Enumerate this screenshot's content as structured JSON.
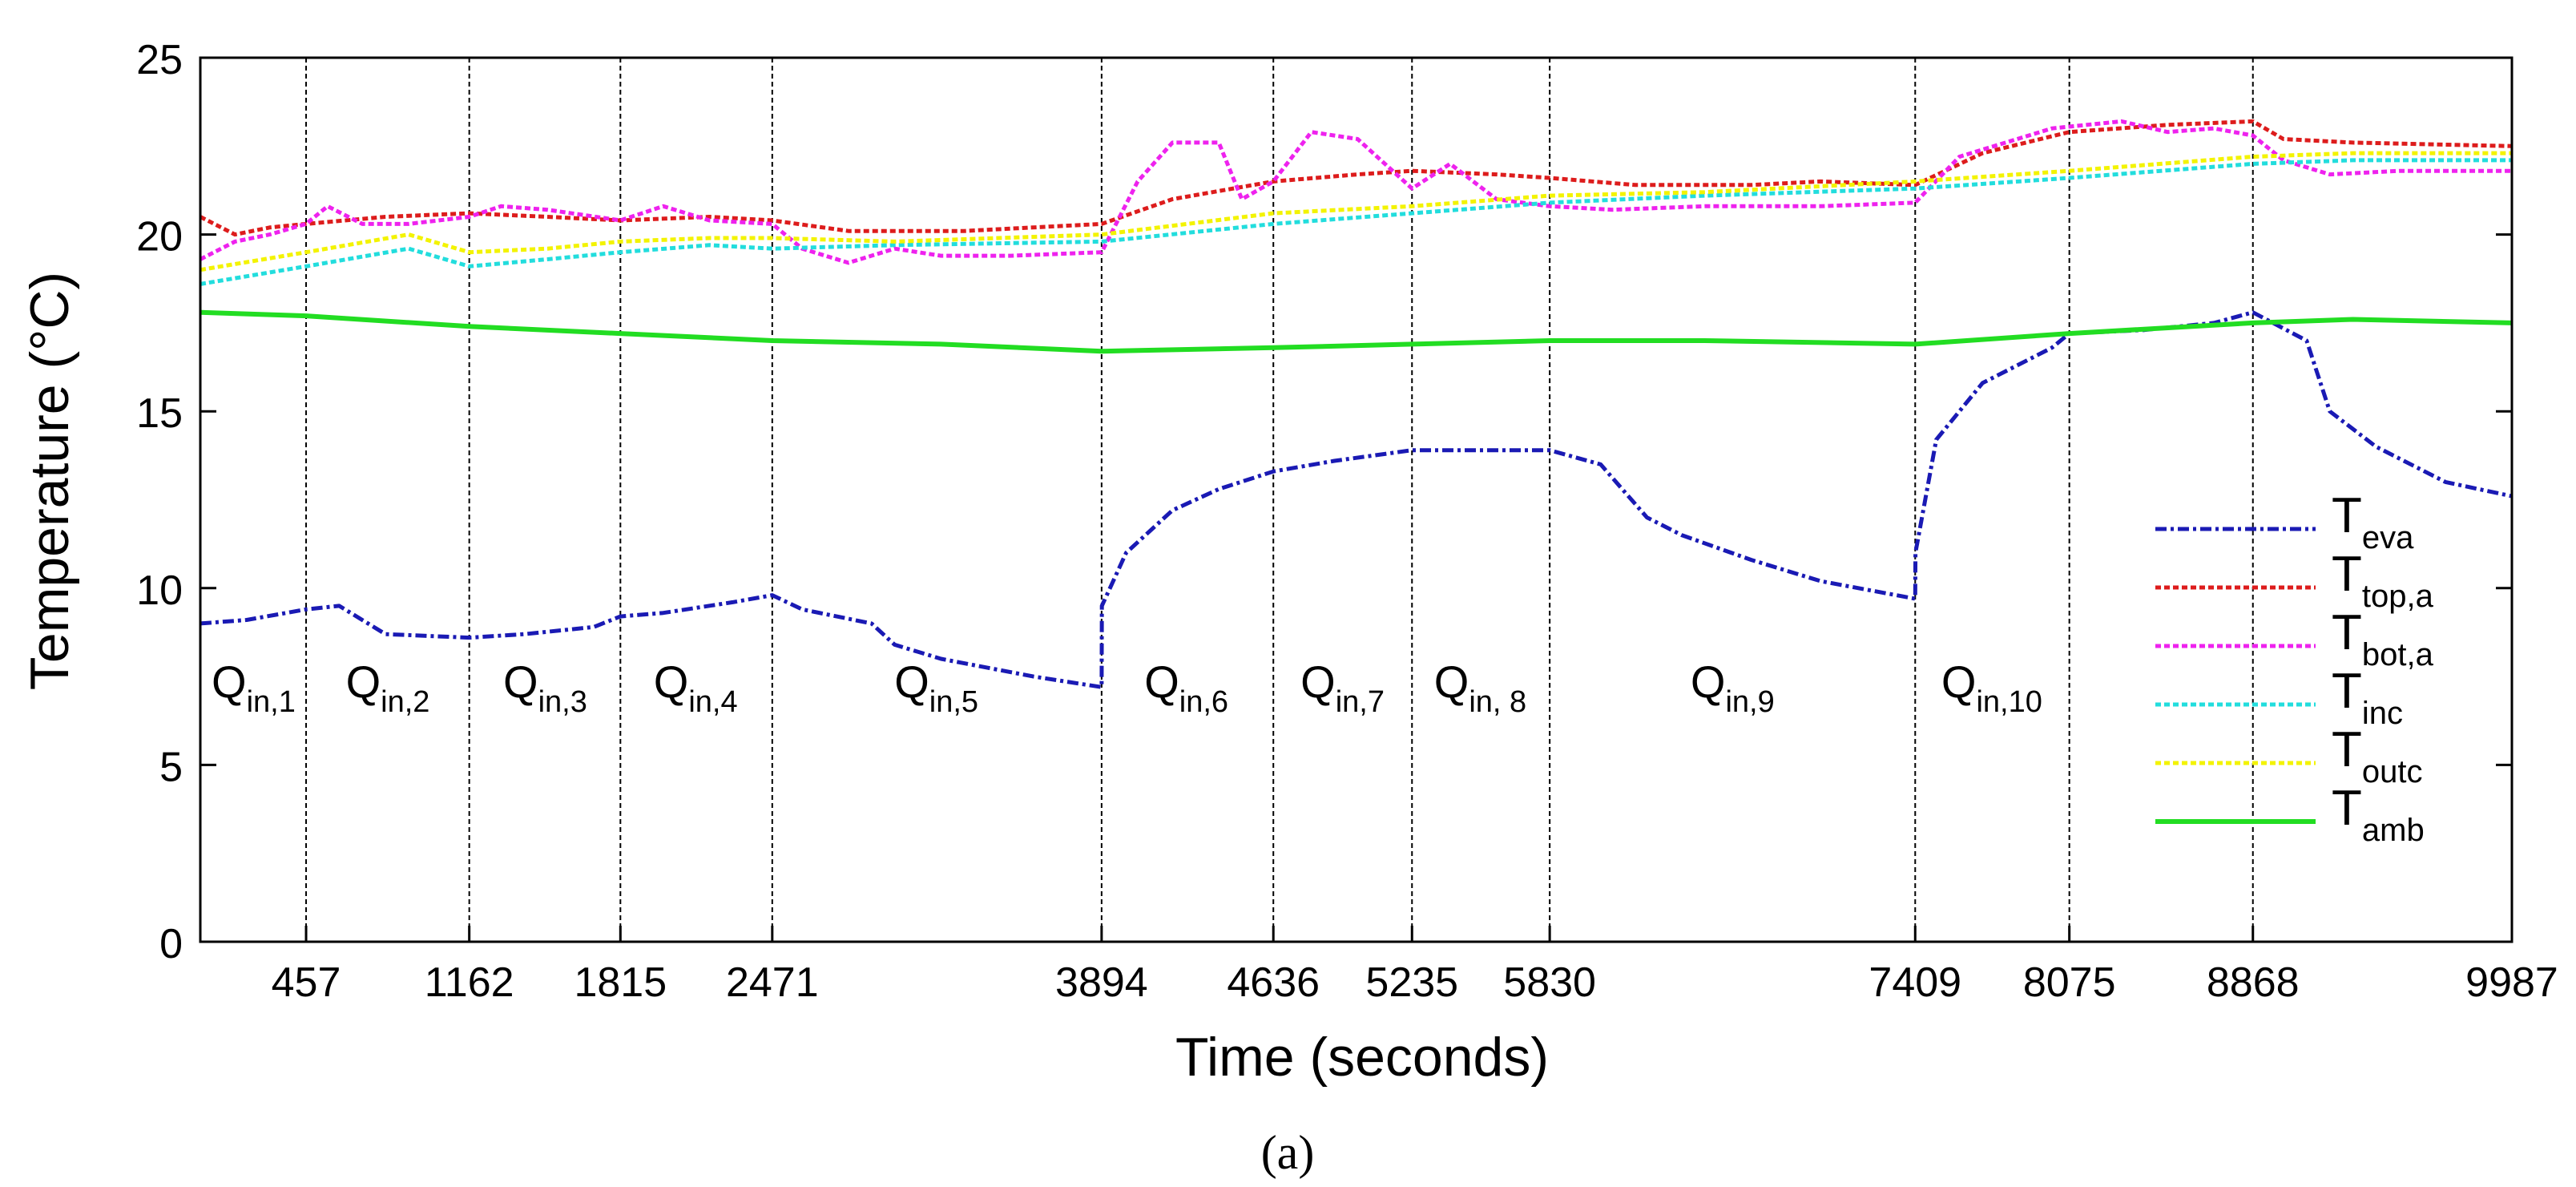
{
  "chart_data": {
    "type": "line",
    "title": "",
    "xlabel": "Time (seconds)",
    "ylabel": "Temperature (°C)",
    "xlim": [
      0,
      9987
    ],
    "ylim": [
      0,
      25
    ],
    "yticks": [
      0,
      5,
      10,
      15,
      20,
      25
    ],
    "xticks": [
      457,
      1162,
      1815,
      2471,
      3894,
      4636,
      5235,
      5830,
      7409,
      8075,
      8868,
      9987
    ],
    "caption": "(a)",
    "grid": false,
    "legend_position": "right",
    "regions": [
      {
        "label": "Q",
        "sub": "in,1",
        "x": 230
      },
      {
        "label": "Q",
        "sub": "in,2",
        "x": 810
      },
      {
        "label": "Q",
        "sub": "in,3",
        "x": 1490
      },
      {
        "label": "Q",
        "sub": "in,4",
        "x": 2140
      },
      {
        "label": "Q",
        "sub": "in,5",
        "x": 3180
      },
      {
        "label": "Q",
        "sub": "in,6",
        "x": 4260
      },
      {
        "label": "Q",
        "sub": "in,7",
        "x": 4935
      },
      {
        "label": "Q",
        "sub": "in, 8",
        "x": 5530
      },
      {
        "label": "Q",
        "sub": "in,9",
        "x": 6620
      },
      {
        "label": "Q",
        "sub": "in,10",
        "x": 7740
      }
    ],
    "series": [
      {
        "name": "T",
        "sub": "eva",
        "color": "#1a1ab4",
        "dash": "dashdot",
        "x": [
          0,
          200,
          457,
          600,
          800,
          1162,
          1400,
          1700,
          1815,
          2000,
          2300,
          2471,
          2600,
          2900,
          3000,
          3200,
          3600,
          3894,
          3895,
          4000,
          4200,
          4400,
          4636,
          4900,
          5235,
          5500,
          5830,
          6050,
          6250,
          6400,
          6700,
          7000,
          7409,
          7410,
          7500,
          7700,
          8000,
          8075,
          8400,
          8700,
          8868,
          9100,
          9200,
          9400,
          9700,
          9987
        ],
        "y": [
          9.0,
          9.1,
          9.4,
          9.5,
          8.7,
          8.6,
          8.7,
          8.9,
          9.2,
          9.3,
          9.6,
          9.8,
          9.4,
          9.0,
          8.4,
          8.0,
          7.5,
          7.2,
          9.5,
          11.0,
          12.2,
          12.8,
          13.3,
          13.6,
          13.9,
          13.9,
          13.9,
          13.5,
          12.0,
          11.5,
          10.8,
          10.2,
          9.7,
          11.0,
          14.2,
          15.8,
          16.8,
          17.2,
          17.3,
          17.5,
          17.8,
          17.0,
          15.0,
          14.0,
          13.0,
          12.6
        ]
      },
      {
        "name": "T",
        "sub": "top,a",
        "color": "#dd1c1c",
        "dash": "dense",
        "x": [
          0,
          150,
          300,
          457,
          800,
          1162,
          1500,
          1815,
          2200,
          2471,
          2800,
          3300,
          3894,
          4200,
          4636,
          5000,
          5235,
          5600,
          5830,
          6200,
          6700,
          7000,
          7409,
          7700,
          8075,
          8500,
          8868,
          9000,
          9300,
          9987
        ],
        "y": [
          20.5,
          20.0,
          20.2,
          20.3,
          20.5,
          20.6,
          20.5,
          20.4,
          20.5,
          20.4,
          20.1,
          20.1,
          20.3,
          21.0,
          21.5,
          21.7,
          21.8,
          21.7,
          21.6,
          21.4,
          21.4,
          21.5,
          21.4,
          22.3,
          22.9,
          23.1,
          23.2,
          22.7,
          22.6,
          22.5
        ]
      },
      {
        "name": "T",
        "sub": "bot,a",
        "color": "#ee22ee",
        "dash": "dense",
        "x": [
          0,
          150,
          300,
          457,
          550,
          700,
          900,
          1162,
          1300,
          1500,
          1815,
          2000,
          2200,
          2471,
          2600,
          2800,
          3000,
          3200,
          3500,
          3894,
          4050,
          4200,
          4400,
          4500,
          4636,
          4800,
          5000,
          5235,
          5400,
          5600,
          5830,
          6100,
          6500,
          7000,
          7409,
          7600,
          8000,
          8300,
          8500,
          8700,
          8868,
          9000,
          9200,
          9500,
          9987
        ],
        "y": [
          19.3,
          19.8,
          20.0,
          20.3,
          20.8,
          20.3,
          20.3,
          20.5,
          20.8,
          20.7,
          20.4,
          20.8,
          20.4,
          20.3,
          19.6,
          19.2,
          19.6,
          19.4,
          19.4,
          19.5,
          21.5,
          22.6,
          22.6,
          21.0,
          21.5,
          22.9,
          22.7,
          21.3,
          22.0,
          21.0,
          20.8,
          20.7,
          20.8,
          20.8,
          20.9,
          22.2,
          23.0,
          23.2,
          22.9,
          23.0,
          22.8,
          22.1,
          21.7,
          21.8,
          21.8
        ]
      },
      {
        "name": "T",
        "sub": "inc",
        "color": "#22dddd",
        "dash": "dense",
        "x": [
          0,
          457,
          900,
          1162,
          1500,
          1815,
          2200,
          2471,
          3000,
          3894,
          4636,
          5235,
          5830,
          6500,
          7409,
          8075,
          8868,
          9300,
          9987
        ],
        "y": [
          18.6,
          19.1,
          19.6,
          19.1,
          19.3,
          19.5,
          19.7,
          19.6,
          19.7,
          19.8,
          20.3,
          20.6,
          20.9,
          21.1,
          21.3,
          21.6,
          22.0,
          22.1,
          22.1
        ]
      },
      {
        "name": "T",
        "sub": "outc",
        "color": "#f3f300",
        "dash": "dense",
        "x": [
          0,
          457,
          900,
          1162,
          1500,
          1815,
          2200,
          2471,
          3000,
          3894,
          4636,
          5235,
          5830,
          6500,
          7409,
          8075,
          8868,
          9300,
          9987
        ],
        "y": [
          19.0,
          19.5,
          20.0,
          19.5,
          19.6,
          19.8,
          19.9,
          19.9,
          19.8,
          20.0,
          20.6,
          20.8,
          21.1,
          21.2,
          21.5,
          21.8,
          22.2,
          22.3,
          22.3
        ]
      },
      {
        "name": "T",
        "sub": "amb",
        "color": "#22dd22",
        "dash": "solid",
        "x": [
          0,
          457,
          1162,
          1815,
          2471,
          3200,
          3894,
          4636,
          5235,
          5830,
          6500,
          7409,
          8075,
          8868,
          9300,
          9987
        ],
        "y": [
          17.8,
          17.7,
          17.4,
          17.2,
          17.0,
          16.9,
          16.7,
          16.8,
          16.9,
          17.0,
          17.0,
          16.9,
          17.2,
          17.5,
          17.6,
          17.5
        ]
      }
    ]
  }
}
